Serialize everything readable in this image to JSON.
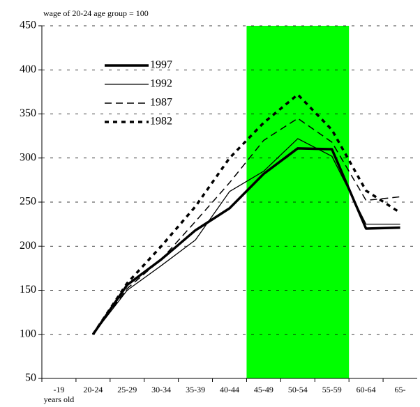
{
  "chart_data": {
    "type": "line",
    "y_label": "wage of 20-24 age group = 100",
    "x_unit_label": "years old",
    "categories": [
      "-19",
      "20-24",
      "25-29",
      "30-34",
      "35-39",
      "40-44",
      "45-49",
      "50-54",
      "55-59",
      "60-64",
      "65-"
    ],
    "series": [
      {
        "name": "1997",
        "color": "#000000",
        "width": 3.5,
        "dash": "none",
        "values": [
          null,
          100,
          156,
          185,
          218,
          243,
          282,
          311,
          310,
          220,
          221
        ]
      },
      {
        "name": "1992",
        "color": "#000000",
        "width": 1.3,
        "dash": "none",
        "values": [
          null,
          100,
          150,
          178,
          207,
          262,
          285,
          322,
          302,
          225,
          225
        ]
      },
      {
        "name": "1987",
        "color": "#000000",
        "width": 1.5,
        "dash": "10,6",
        "values": [
          null,
          100,
          152,
          185,
          228,
          272,
          320,
          345,
          318,
          252,
          256
        ]
      },
      {
        "name": "1982",
        "color": "#000000",
        "width": 3.5,
        "dash": "6,6",
        "values": [
          null,
          100,
          158,
          200,
          245,
          300,
          340,
          372,
          332,
          263,
          238
        ]
      }
    ],
    "shaded_range": {
      "start": "45-49",
      "end": "55-59",
      "color": "#00ff00"
    },
    "ylim": [
      50,
      450
    ],
    "yticks": [
      50,
      100,
      150,
      200,
      250,
      300,
      350,
      400,
      450
    ],
    "grid": true,
    "legend": "upper left"
  }
}
